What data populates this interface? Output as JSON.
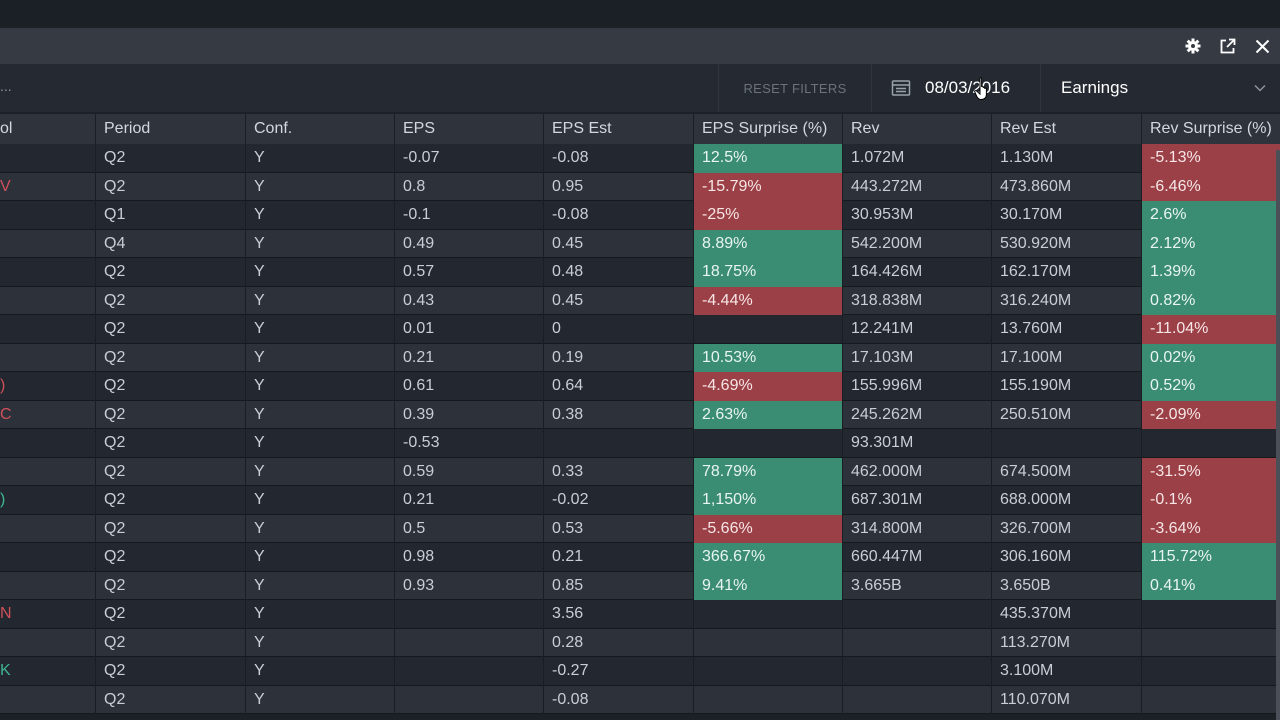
{
  "window": {
    "icons": [
      "gear-icon",
      "popout-icon",
      "close-icon"
    ]
  },
  "filters": {
    "search_ellipsis": "...",
    "reset_label": "RESET FILTERS",
    "date": "08/03/2016",
    "type": "Earnings"
  },
  "table": {
    "columns": [
      "ol",
      "Period",
      "Conf.",
      "EPS",
      "EPS Est",
      "EPS Surprise (%)",
      "Rev",
      "Rev Est",
      "Rev Surprise (%)"
    ],
    "rows": [
      {
        "sym": "",
        "symColor": "",
        "period": "Q2",
        "conf": "Y",
        "eps": "-0.07",
        "epsEst": "-0.08",
        "epsSurprise": "12.5%",
        "rev": "1.072M",
        "revEst": "1.130M",
        "revSurprise": "-5.13%"
      },
      {
        "sym": "V",
        "symColor": "#d0505a",
        "period": "Q2",
        "conf": "Y",
        "eps": "0.8",
        "epsEst": "0.95",
        "epsSurprise": "-15.79%",
        "rev": "443.272M",
        "revEst": "473.860M",
        "revSurprise": "-6.46%"
      },
      {
        "sym": "",
        "symColor": "",
        "period": "Q1",
        "conf": "Y",
        "eps": "-0.1",
        "epsEst": "-0.08",
        "epsSurprise": "-25%",
        "rev": "30.953M",
        "revEst": "30.170M",
        "revSurprise": "2.6%"
      },
      {
        "sym": "",
        "symColor": "",
        "period": "Q4",
        "conf": "Y",
        "eps": "0.49",
        "epsEst": "0.45",
        "epsSurprise": "8.89%",
        "rev": "542.200M",
        "revEst": "530.920M",
        "revSurprise": "2.12%"
      },
      {
        "sym": "",
        "symColor": "",
        "period": "Q2",
        "conf": "Y",
        "eps": "0.57",
        "epsEst": "0.48",
        "epsSurprise": "18.75%",
        "rev": "164.426M",
        "revEst": "162.170M",
        "revSurprise": "1.39%"
      },
      {
        "sym": "",
        "symColor": "",
        "period": "Q2",
        "conf": "Y",
        "eps": "0.43",
        "epsEst": "0.45",
        "epsSurprise": "-4.44%",
        "rev": "318.838M",
        "revEst": "316.240M",
        "revSurprise": "0.82%"
      },
      {
        "sym": "",
        "symColor": "",
        "period": "Q2",
        "conf": "Y",
        "eps": "0.01",
        "epsEst": "0",
        "epsSurprise": "",
        "rev": "12.241M",
        "revEst": "13.760M",
        "revSurprise": "-11.04%"
      },
      {
        "sym": "",
        "symColor": "",
        "period": "Q2",
        "conf": "Y",
        "eps": "0.21",
        "epsEst": "0.19",
        "epsSurprise": "10.53%",
        "rev": "17.103M",
        "revEst": "17.100M",
        "revSurprise": "0.02%"
      },
      {
        "sym": ")",
        "symColor": "#d0505a",
        "period": "Q2",
        "conf": "Y",
        "eps": "0.61",
        "epsEst": "0.64",
        "epsSurprise": "-4.69%",
        "rev": "155.996M",
        "revEst": "155.190M",
        "revSurprise": "0.52%"
      },
      {
        "sym": "C",
        "symColor": "#d0505a",
        "period": "Q2",
        "conf": "Y",
        "eps": "0.39",
        "epsEst": "0.38",
        "epsSurprise": "2.63%",
        "rev": "245.262M",
        "revEst": "250.510M",
        "revSurprise": "-2.09%"
      },
      {
        "sym": "",
        "symColor": "",
        "period": "Q2",
        "conf": "Y",
        "eps": "-0.53",
        "epsEst": "",
        "epsSurprise": "",
        "rev": "93.301M",
        "revEst": "",
        "revSurprise": ""
      },
      {
        "sym": "",
        "symColor": "",
        "period": "Q2",
        "conf": "Y",
        "eps": "0.59",
        "epsEst": "0.33",
        "epsSurprise": "78.79%",
        "rev": "462.000M",
        "revEst": "674.500M",
        "revSurprise": "-31.5%"
      },
      {
        "sym": ")",
        "symColor": "#3fb592",
        "period": "Q2",
        "conf": "Y",
        "eps": "0.21",
        "epsEst": "-0.02",
        "epsSurprise": "1,150%",
        "rev": "687.301M",
        "revEst": "688.000M",
        "revSurprise": "-0.1%"
      },
      {
        "sym": "",
        "symColor": "",
        "period": "Q2",
        "conf": "Y",
        "eps": "0.5",
        "epsEst": "0.53",
        "epsSurprise": "-5.66%",
        "rev": "314.800M",
        "revEst": "326.700M",
        "revSurprise": "-3.64%"
      },
      {
        "sym": "",
        "symColor": "",
        "period": "Q2",
        "conf": "Y",
        "eps": "0.98",
        "epsEst": "0.21",
        "epsSurprise": "366.67%",
        "rev": "660.447M",
        "revEst": "306.160M",
        "revSurprise": "115.72%"
      },
      {
        "sym": "",
        "symColor": "",
        "period": "Q2",
        "conf": "Y",
        "eps": "0.93",
        "epsEst": "0.85",
        "epsSurprise": "9.41%",
        "rev": "3.665B",
        "revEst": "3.650B",
        "revSurprise": "0.41%"
      },
      {
        "sym": "N",
        "symColor": "#d0505a",
        "period": "Q2",
        "conf": "Y",
        "eps": "",
        "epsEst": "3.56",
        "epsSurprise": "",
        "rev": "",
        "revEst": "435.370M",
        "revSurprise": ""
      },
      {
        "sym": "",
        "symColor": "",
        "period": "Q2",
        "conf": "Y",
        "eps": "",
        "epsEst": "0.28",
        "epsSurprise": "",
        "rev": "",
        "revEst": "113.270M",
        "revSurprise": ""
      },
      {
        "sym": "K",
        "symColor": "#3fb592",
        "period": "Q2",
        "conf": "Y",
        "eps": "",
        "epsEst": "-0.27",
        "epsSurprise": "",
        "rev": "",
        "revEst": "3.100M",
        "revSurprise": ""
      },
      {
        "sym": "",
        "symColor": "",
        "period": "Q2",
        "conf": "Y",
        "eps": "",
        "epsEst": "-0.08",
        "epsSurprise": "",
        "rev": "",
        "revEst": "110.070M",
        "revSurprise": ""
      }
    ]
  }
}
